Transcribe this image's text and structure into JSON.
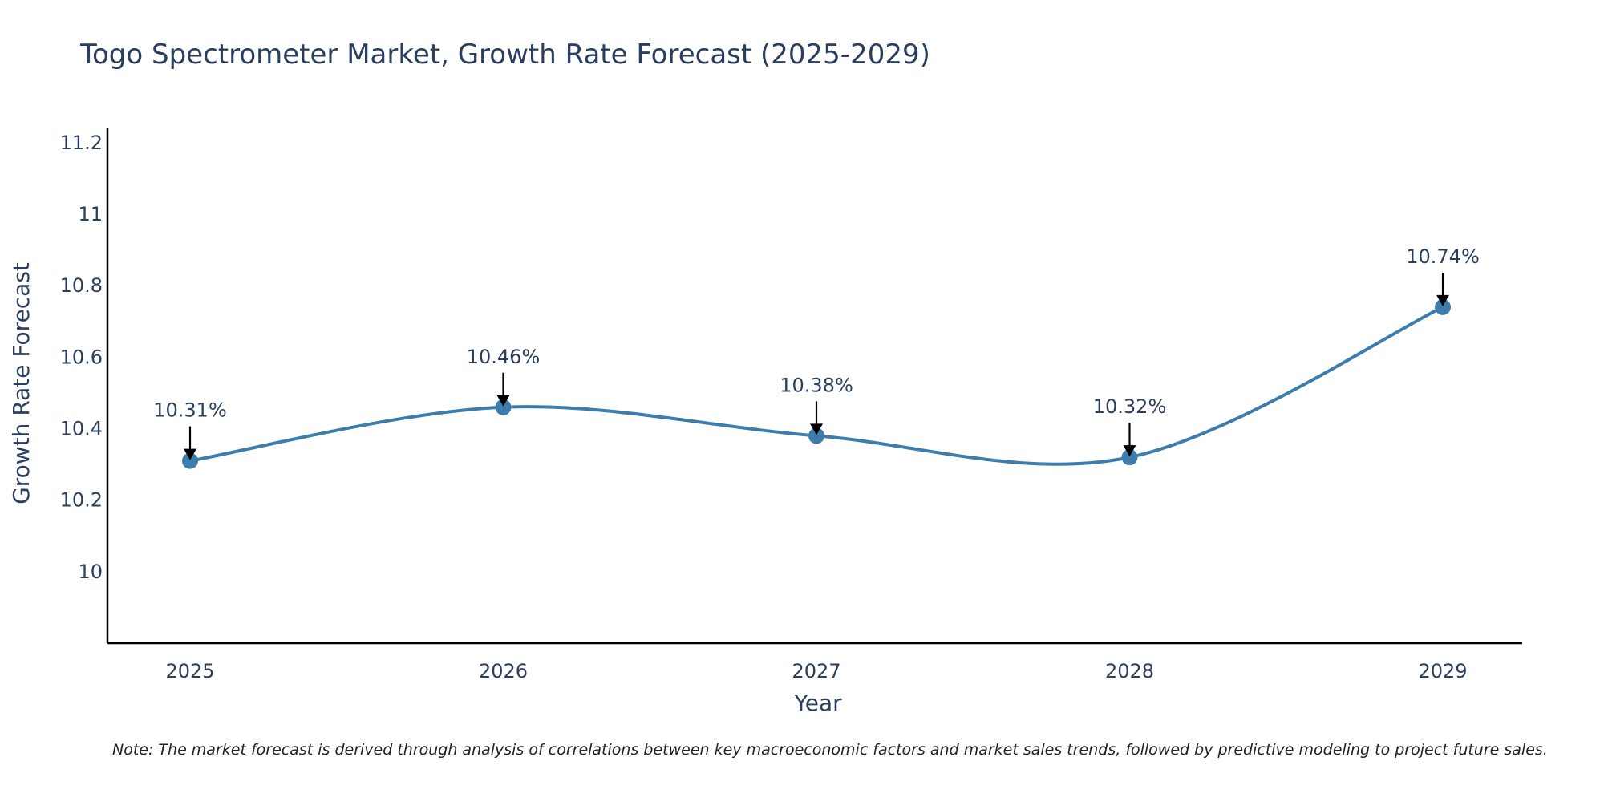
{
  "chart_data": {
    "type": "line",
    "title": "Togo Spectrometer Market, Growth Rate Forecast (2025-2029)",
    "xlabel": "Year",
    "ylabel": "Growth Rate Forecast",
    "categories": [
      "2025",
      "2026",
      "2027",
      "2028",
      "2029"
    ],
    "series": [
      {
        "name": "Growth Rate Forecast",
        "values": [
          10.31,
          10.46,
          10.38,
          10.32,
          10.74
        ]
      }
    ],
    "data_labels": [
      "10.31%",
      "10.46%",
      "10.38%",
      "10.32%",
      "10.74%"
    ],
    "yticks": [
      10,
      10.2,
      10.4,
      10.6,
      10.8,
      11,
      11.2
    ],
    "ytick_labels": [
      "10",
      "10.2",
      "10.4",
      "10.6",
      "10.8",
      "11",
      "11.2"
    ],
    "ylim": [
      9.8,
      11.24
    ],
    "grid": false,
    "line_shape": "spline"
  },
  "note": "Note: The market forecast is derived through analysis of correlations between key macroeconomic factors and market sales trends, followed by predictive modeling to project future sales.",
  "colors": {
    "line": "#3d7dab",
    "marker": "#3d7dab",
    "axis": "#000000",
    "text": "#2a3f5f",
    "arrow": "#000000"
  }
}
